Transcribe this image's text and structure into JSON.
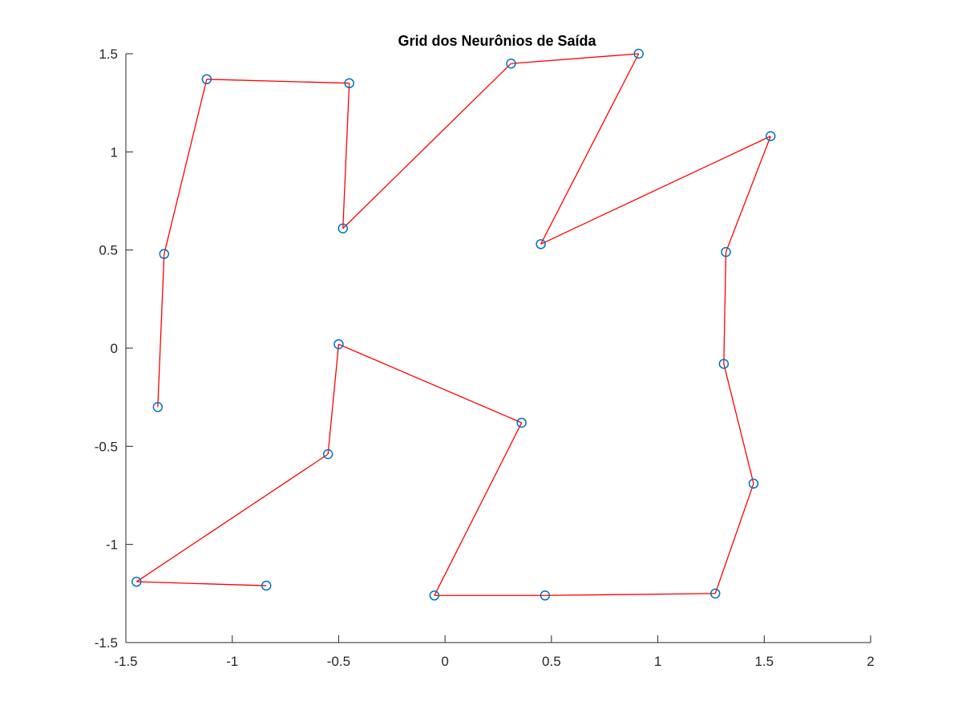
{
  "chart_data": {
    "type": "line",
    "title": "Grid dos Neurônios de Saída",
    "xlabel": "",
    "ylabel": "",
    "xlim": [
      -1.5,
      2
    ],
    "ylim": [
      -1.5,
      1.5
    ],
    "xticks": [
      -1.5,
      -1,
      -0.5,
      0,
      0.5,
      1,
      1.5,
      2
    ],
    "xtick_labels": [
      "-1.5",
      "-1",
      "-0.5",
      "0",
      "0.5",
      "1",
      "1.5",
      "2"
    ],
    "yticks": [
      -1.5,
      -1,
      -0.5,
      0,
      0.5,
      1,
      1.5
    ],
    "ytick_labels": [
      "-1.5",
      "-1",
      "-0.5",
      "0",
      "0.5",
      "1",
      "1.5"
    ],
    "grid": false,
    "legend": "none",
    "colors": {
      "line": "#ff0000",
      "marker": "#0072bd",
      "axis": "#262626"
    },
    "marker": "circle",
    "series": [
      {
        "x": [
          -1.35,
          -1.32,
          -1.12,
          -0.45,
          -0.48,
          0.31,
          0.91,
          0.45,
          1.53,
          1.32,
          1.31,
          1.45,
          1.27,
          0.47,
          -0.05,
          0.36,
          -0.5,
          -0.55,
          -1.45,
          -0.84
        ],
        "y": [
          -0.3,
          0.48,
          1.37,
          1.35,
          0.61,
          1.45,
          1.5,
          0.53,
          1.08,
          0.49,
          -0.08,
          -0.69,
          -1.25,
          -1.26,
          -1.26,
          -0.38,
          0.02,
          -0.54,
          -1.19,
          -1.21
        ]
      }
    ]
  }
}
